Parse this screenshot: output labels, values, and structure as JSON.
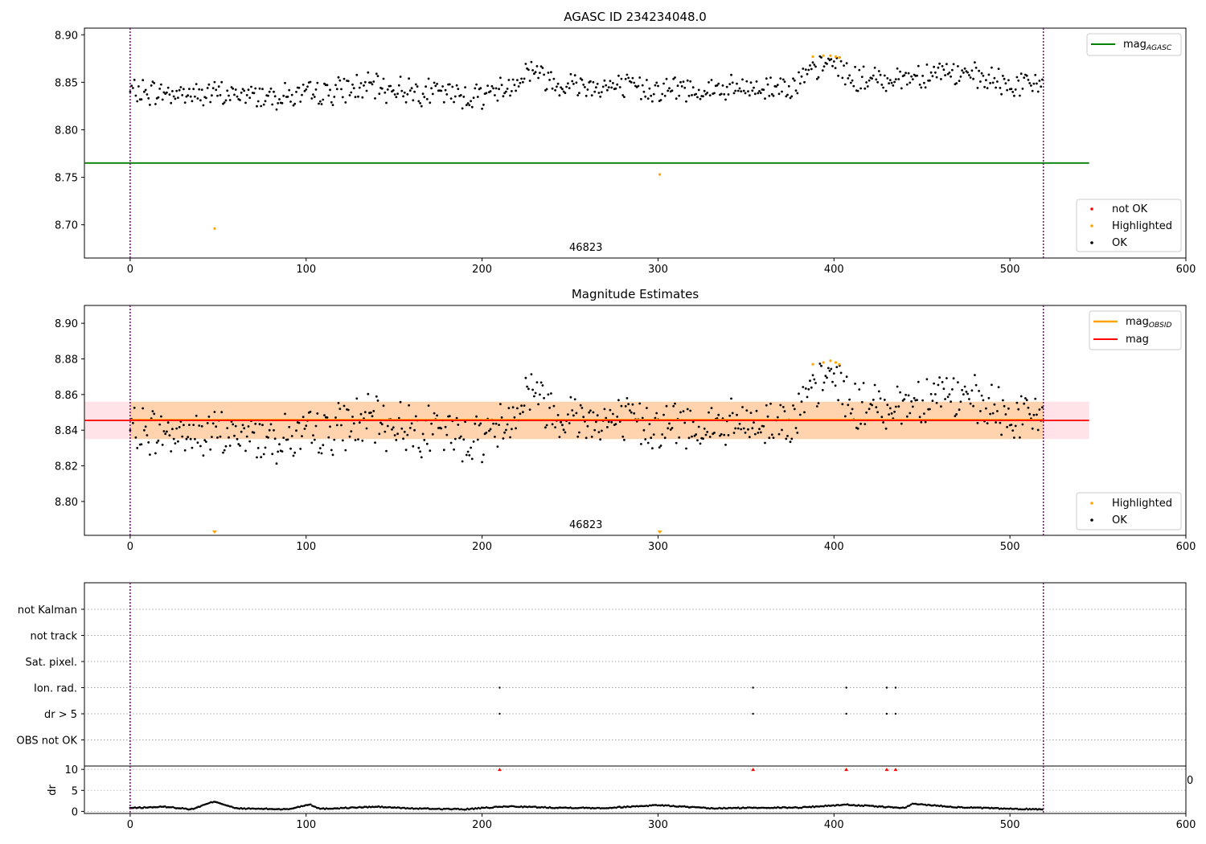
{
  "figure": {
    "title": "AGASC ID 234234048.0"
  },
  "chart_data": [
    {
      "type": "scatter",
      "title": "AGASC ID 234234048.0",
      "xlim": [
        -26,
        600
      ],
      "ylim": [
        8.665,
        8.907
      ],
      "xticks": [
        0,
        100,
        200,
        300,
        400,
        500,
        600
      ],
      "yticks": [
        8.7,
        8.75,
        8.8,
        8.85,
        8.9
      ],
      "ytick_labels": [
        "8.70",
        "8.75",
        "8.80",
        "8.85",
        "8.90"
      ],
      "obsid_label": "46823",
      "obsid_label_x": 259,
      "vlines": [
        0,
        519
      ],
      "vline_color": "#800080",
      "hline": {
        "y": 8.765,
        "x0": -26,
        "x1": 545,
        "color": "#008000"
      },
      "legend_top": [
        {
          "label": "mag",
          "sub": "AGASC",
          "color": "#008000"
        }
      ],
      "legend_bottom": [
        {
          "label": "not OK",
          "color": "#ff0000"
        },
        {
          "label": "Highlighted",
          "color": "#ffa500"
        },
        {
          "label": "OK",
          "color": "#000000"
        }
      ],
      "series": [
        {
          "name": "Highlighted",
          "color": "#ffa500",
          "points": [
            [
              48,
              8.696
            ],
            [
              301,
              8.753
            ],
            [
              388,
              8.877
            ],
            [
              394,
              8.878
            ],
            [
              398,
              8.878
            ],
            [
              401,
              8.877
            ],
            [
              403,
              8.876
            ]
          ]
        }
      ],
      "ok_curve": [
        [
          0,
          8.84
        ],
        [
          30,
          8.838
        ],
        [
          60,
          8.837
        ],
        [
          100,
          8.836
        ],
        [
          130,
          8.845
        ],
        [
          160,
          8.842
        ],
        [
          195,
          8.835
        ],
        [
          215,
          8.845
        ],
        [
          228,
          8.865
        ],
        [
          240,
          8.85
        ],
        [
          275,
          8.845
        ],
        [
          300,
          8.843
        ],
        [
          330,
          8.842
        ],
        [
          360,
          8.843
        ],
        [
          380,
          8.85
        ],
        [
          393,
          8.866
        ],
        [
          400,
          8.872
        ],
        [
          412,
          8.852
        ],
        [
          440,
          8.855
        ],
        [
          460,
          8.862
        ],
        [
          480,
          8.855
        ],
        [
          500,
          8.847
        ],
        [
          519,
          8.848
        ]
      ]
    },
    {
      "type": "scatter",
      "title": "Magnitude Estimates",
      "xlim": [
        -26,
        600
      ],
      "ylim": [
        8.781,
        8.91
      ],
      "xticks": [
        0,
        100,
        200,
        300,
        400,
        500,
        600
      ],
      "yticks": [
        8.8,
        8.82,
        8.84,
        8.86,
        8.88,
        8.9
      ],
      "ytick_labels": [
        "8.80",
        "8.82",
        "8.84",
        "8.86",
        "8.88",
        "8.90"
      ],
      "obsid_label": "46823",
      "obsid_label_x": 259,
      "vlines": [
        0,
        519
      ],
      "mean_line": {
        "y": 8.8455,
        "x0": 0,
        "x1": 519,
        "color": "#ff0000"
      },
      "band_pink": {
        "y0": 8.835,
        "y1": 8.856,
        "x0": -26,
        "x1": 545,
        "color": "#ffc0cb"
      },
      "band_orange": {
        "y0": 8.835,
        "y1": 8.856,
        "x0": 0,
        "x1": 519,
        "color": "#ffa500"
      },
      "legend_top": [
        {
          "label": "mag",
          "sub": "OBSID",
          "color": "#ffa500"
        },
        {
          "label": "mag",
          "sub": "",
          "color": "#ff0000"
        }
      ],
      "legend_bottom": [
        {
          "label": "Highlighted",
          "color": "#ffa500"
        },
        {
          "label": "OK",
          "color": "#000000"
        }
      ],
      "series": [
        {
          "name": "Highlighted",
          "color": "#ffa500",
          "points": [
            [
              388,
              8.877
            ],
            [
              394,
              8.878
            ],
            [
              398,
              8.879
            ],
            [
              401,
              8.878
            ],
            [
              403,
              8.877
            ]
          ]
        }
      ],
      "markers_low": [
        {
          "x": 48,
          "color": "#ffa500"
        },
        {
          "x": 301,
          "color": "#ffa500"
        }
      ]
    },
    {
      "type": "scatter",
      "title": "",
      "xlim": [
        -26,
        600
      ],
      "categories": [
        "not Kalman",
        "not track",
        "Sat. pixel.",
        "Ion. rad.",
        "dr > 5",
        "OBS not OK"
      ],
      "flags": {
        "Ion. rad.": [
          210,
          354,
          407,
          430,
          435
        ],
        "dr > 5": [
          210,
          354,
          407,
          430,
          435
        ]
      },
      "vlines": [
        0,
        519
      ]
    },
    {
      "type": "scatter",
      "title": "",
      "xlim": [
        -26,
        600
      ],
      "ylim": [
        -0.5,
        10.8
      ],
      "xticks": [
        0,
        100,
        200,
        300,
        400,
        500,
        600
      ],
      "yticks": [
        0,
        5,
        10
      ],
      "ylabel": "dr",
      "threshold": 10,
      "clipped_label": "0",
      "vlines": [
        0,
        519
      ],
      "red_markers": [
        210,
        354,
        407,
        430,
        435
      ],
      "dr_curve": [
        [
          0,
          0.8
        ],
        [
          20,
          1.1
        ],
        [
          35,
          0.5
        ],
        [
          48,
          2.4
        ],
        [
          60,
          0.7
        ],
        [
          90,
          0.5
        ],
        [
          102,
          1.7
        ],
        [
          108,
          0.6
        ],
        [
          140,
          1.1
        ],
        [
          160,
          0.7
        ],
        [
          190,
          0.5
        ],
        [
          215,
          1.2
        ],
        [
          240,
          0.9
        ],
        [
          270,
          0.8
        ],
        [
          300,
          1.5
        ],
        [
          330,
          0.7
        ],
        [
          360,
          0.9
        ],
        [
          380,
          0.9
        ],
        [
          407,
          1.6
        ],
        [
          440,
          0.8
        ],
        [
          445,
          1.8
        ],
        [
          470,
          1.0
        ],
        [
          500,
          0.6
        ],
        [
          519,
          0.5
        ]
      ]
    }
  ]
}
